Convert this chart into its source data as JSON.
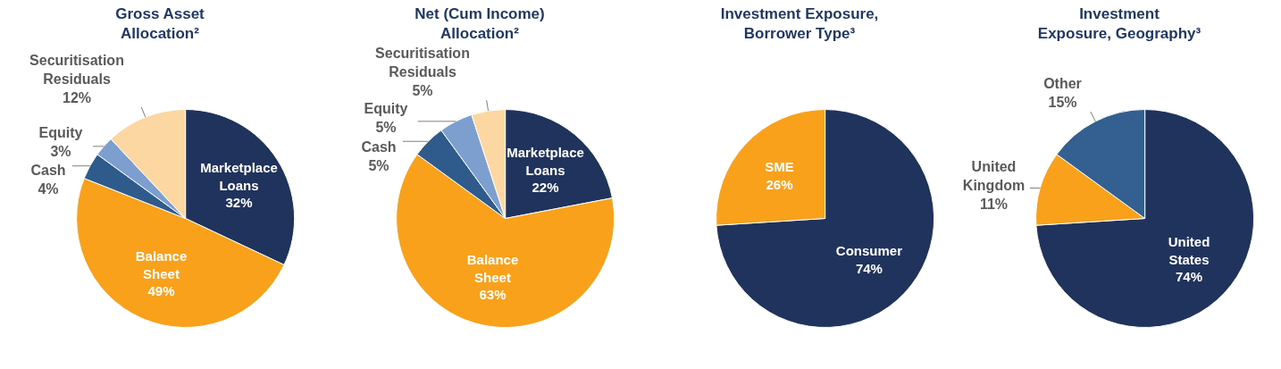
{
  "chart_data": [
    {
      "type": "pie",
      "title": "Gross Asset Allocation²",
      "categories": [
        "Marketplace Loans",
        "Balance Sheet",
        "Cash",
        "Equity",
        "Securitisation Residuals"
      ],
      "values": [
        32,
        49,
        4,
        3,
        12
      ],
      "value_labels": [
        "32%",
        "49%",
        "4%",
        "3%",
        "12%"
      ],
      "colors": [
        "#20335c",
        "#f9a11b",
        "#2f5a8c",
        "#7c9fcf",
        "#fdd7a1"
      ],
      "legend": false
    },
    {
      "type": "pie",
      "title": "Net (Cum Income) Allocation²",
      "categories": [
        "Marketplace Loans",
        "Balance Sheet",
        "Cash",
        "Equity",
        "Securitisation Residuals"
      ],
      "values": [
        22,
        63,
        5,
        5,
        5
      ],
      "value_labels": [
        "22%",
        "63%",
        "5%",
        "5%",
        "5%"
      ],
      "colors": [
        "#20335c",
        "#f9a11b",
        "#2f5a8c",
        "#7c9fcf",
        "#fdd7a1"
      ],
      "legend": false
    },
    {
      "type": "pie",
      "title": "Investment Exposure, Borrower Type³",
      "categories": [
        "Consumer",
        "SME"
      ],
      "values": [
        74,
        26
      ],
      "value_labels": [
        "74%",
        "26%"
      ],
      "colors": [
        "#20335c",
        "#f9a11b"
      ],
      "legend": false
    },
    {
      "type": "pie",
      "title": "Investment Exposure, Geography³",
      "categories": [
        "United States",
        "United Kingdom",
        "Other"
      ],
      "values": [
        74,
        11,
        15
      ],
      "value_labels": [
        "74%",
        "11%",
        "15%"
      ],
      "colors": [
        "#20335c",
        "#f9a11b",
        "#335f91"
      ],
      "legend": false
    }
  ]
}
